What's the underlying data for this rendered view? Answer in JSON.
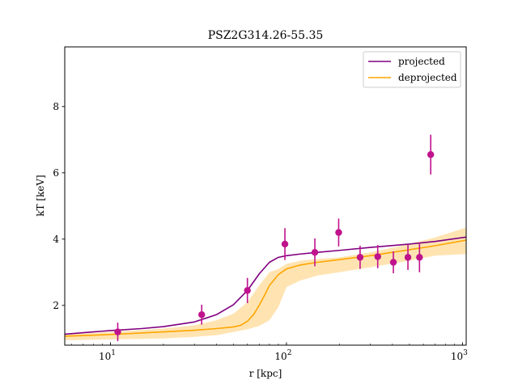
{
  "chart_data": {
    "type": "line",
    "title": "PSZ2G314.26-55.35",
    "xlabel": "r [kpc]",
    "ylabel": "kT [keV]",
    "xscale": "log",
    "xlim": [
      5.5,
      1050
    ],
    "ylim": [
      0.8,
      9.8
    ],
    "x_ticks": [
      {
        "value": 10,
        "base": "10",
        "exp": "1"
      },
      {
        "value": 100,
        "base": "10",
        "exp": "2"
      },
      {
        "value": 1000,
        "base": "10",
        "exp": "3"
      }
    ],
    "y_ticks": [
      2,
      4,
      6,
      8
    ],
    "legend": {
      "position": "upper right",
      "entries": [
        {
          "label": "projected",
          "color": "#800080"
        },
        {
          "label": "deprojected",
          "color": "#FFA500"
        }
      ]
    },
    "series": [
      {
        "name": "projected",
        "color": "#800080",
        "x": [
          5.5,
          8,
          10,
          15,
          20,
          30,
          40,
          50,
          60,
          70,
          80,
          90,
          100,
          120,
          150,
          200,
          300,
          500,
          700,
          1050
        ],
        "y": [
          1.13,
          1.2,
          1.24,
          1.3,
          1.36,
          1.5,
          1.72,
          2.02,
          2.45,
          2.95,
          3.3,
          3.45,
          3.5,
          3.55,
          3.6,
          3.66,
          3.75,
          3.85,
          3.93,
          4.06
        ]
      },
      {
        "name": "deprojected",
        "color": "#FFA500",
        "x": [
          5.5,
          10,
          20,
          30,
          40,
          50,
          55,
          60,
          65,
          70,
          75,
          80,
          90,
          100,
          120,
          150,
          200,
          300,
          500,
          700,
          1050
        ],
        "y": [
          1.07,
          1.12,
          1.2,
          1.25,
          1.3,
          1.35,
          1.4,
          1.52,
          1.72,
          2.0,
          2.3,
          2.6,
          2.93,
          3.1,
          3.22,
          3.3,
          3.38,
          3.5,
          3.68,
          3.8,
          3.97
        ]
      }
    ],
    "band": {
      "name": "deprojected",
      "color": "#FFA500",
      "opacity": 0.3,
      "x": [
        5.5,
        10,
        20,
        30,
        40,
        50,
        60,
        70,
        80,
        90,
        100,
        120,
        150,
        200,
        300,
        500,
        700,
        1050
      ],
      "lower": [
        0.95,
        0.97,
        1.0,
        1.05,
        1.1,
        1.2,
        1.28,
        1.38,
        1.55,
        1.95,
        2.55,
        2.75,
        2.9,
        3.0,
        3.15,
        3.35,
        3.5,
        3.55
      ],
      "upper": [
        1.12,
        1.2,
        1.3,
        1.4,
        1.55,
        1.75,
        2.1,
        2.6,
        3.0,
        3.1,
        3.25,
        3.35,
        3.4,
        3.45,
        3.6,
        3.85,
        4.05,
        4.35
      ]
    },
    "points": {
      "name": "data",
      "color": "#C0128C",
      "x": [
        11,
        33,
        60,
        98,
        145,
        198,
        262,
        330,
        405,
        490,
        570,
        660
      ],
      "y": [
        1.2,
        1.72,
        2.45,
        3.85,
        3.6,
        4.2,
        3.45,
        3.47,
        3.3,
        3.45,
        3.45,
        6.55
      ],
      "yerr": [
        0.28,
        0.3,
        0.38,
        0.48,
        0.42,
        0.42,
        0.35,
        0.35,
        0.33,
        0.38,
        0.45,
        0.6
      ]
    }
  }
}
